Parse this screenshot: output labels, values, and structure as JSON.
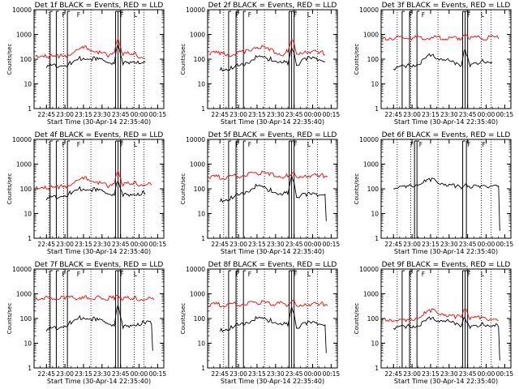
{
  "figure": {
    "background": "#ffffff",
    "axis_color": "#000000"
  },
  "chart_data": [
    {
      "type": "line",
      "title": "Det 1f BLACK = Events, RED = LLD",
      "xlabel": "Start Time (30-Apr-14 22:35:40)",
      "ylabel": "Counts/sec",
      "yscale": "log",
      "ylim": [
        1,
        10000
      ],
      "xlim": [
        "22:35",
        "00:20"
      ],
      "x_tick_labels": [
        "22:45",
        "23:00",
        "23:15",
        "23:30",
        "23:45",
        "00:00",
        "00:15"
      ],
      "y_tick_labels": [
        "1",
        "10",
        "100",
        "1000",
        "10000"
      ],
      "series": [
        {
          "color": "#ff0000",
          "x": [
            "22:36",
            "22:45",
            "22:55",
            "23:05",
            "23:15",
            "23:25",
            "23:35",
            "23:40",
            "23:43",
            "23:47",
            "23:55",
            "00:03",
            "00:05"
          ],
          "values": [
            130,
            120,
            110,
            150,
            280,
            200,
            120,
            180,
            700,
            140,
            150,
            110,
            105
          ]
        },
        {
          "color": "#000000",
          "x": [
            "22:45",
            "22:55",
            "23:05",
            "23:15",
            "23:25",
            "23:35",
            "23:40",
            "23:43",
            "23:47",
            "23:55",
            "00:03",
            "00:05"
          ],
          "values": [
            45,
            50,
            60,
            110,
            90,
            70,
            65,
            400,
            60,
            80,
            70,
            75
          ]
        }
      ],
      "bracket_lines": [
        "22:48",
        "22:53",
        "23:02",
        "23:41",
        "23:43",
        "23:45"
      ],
      "dotted_lines": [
        "22:47",
        "22:59",
        "23:21",
        "23:56",
        "00:04"
      ],
      "marker_glyphs": [
        {
          "label": "F",
          "x": "22:57"
        },
        {
          "label": "F",
          "x": "23:09"
        },
        {
          "label": "F",
          "x": "23:44"
        },
        {
          "label": "L",
          "x": "23:55"
        }
      ]
    },
    {
      "type": "line",
      "title": "Det 2f BLACK = Events, RED = LLD",
      "xlabel": "Start Time (30-Apr-14 22:35:40)",
      "ylabel": "Counts/sec",
      "yscale": "log",
      "ylim": [
        1,
        10000
      ],
      "xlim": [
        "22:35",
        "00:20"
      ],
      "x_tick_labels": [
        "22:45",
        "23:00",
        "23:15",
        "23:30",
        "23:45",
        "00:00",
        "00:15"
      ],
      "y_tick_labels": [
        "1",
        "10",
        "100",
        "1000",
        "10000"
      ],
      "series": [
        {
          "color": "#ff0000",
          "x": [
            "22:36",
            "22:45",
            "22:55",
            "23:05",
            "23:15",
            "23:25",
            "23:35",
            "23:40",
            "23:43",
            "23:47",
            "23:55",
            "00:05",
            "00:10"
          ],
          "values": [
            160,
            150,
            140,
            170,
            300,
            220,
            140,
            190,
            650,
            160,
            180,
            170,
            150
          ]
        },
        {
          "color": "#000000",
          "x": [
            "22:45",
            "22:55",
            "23:05",
            "23:15",
            "23:25",
            "23:35",
            "23:40",
            "23:43",
            "23:47",
            "23:55",
            "00:05",
            "00:10"
          ],
          "values": [
            35,
            40,
            55,
            120,
            90,
            70,
            60,
            300,
            55,
            90,
            95,
            80
          ]
        }
      ],
      "bracket_lines": [
        "22:52",
        "22:58",
        "23:04",
        "23:41",
        "23:43",
        "23:45"
      ],
      "dotted_lines": [
        "22:48",
        "22:59",
        "23:21",
        "23:56",
        "00:04"
      ],
      "marker_glyphs": [
        {
          "label": "F",
          "x": "22:57"
        },
        {
          "label": "F",
          "x": "23:07"
        },
        {
          "label": "F",
          "x": "23:44"
        },
        {
          "label": "L",
          "x": "23:55"
        }
      ]
    },
    {
      "type": "line",
      "title": "Det 3f BLACK = Events, RED = LLD",
      "xlabel": "Start Time (30-Apr-14 22:35:40)",
      "ylabel": "Counts/sec",
      "yscale": "log",
      "ylim": [
        1,
        10000
      ],
      "xlim": [
        "22:35",
        "00:20"
      ],
      "x_tick_labels": [
        "22:45",
        "23:00",
        "23:15",
        "23:30",
        "23:45",
        "00:00",
        "00:15"
      ],
      "y_tick_labels": [
        "1",
        "10",
        "100",
        "1000",
        "10000"
      ],
      "series": [
        {
          "color": "#ff0000",
          "x": [
            "22:36",
            "23:40",
            "23:43",
            "23:47",
            "00:10"
          ],
          "values": [
            650,
            650,
            900,
            650,
            650
          ]
        },
        {
          "color": "#000000",
          "x": [
            "22:45",
            "22:55",
            "23:05",
            "23:15",
            "23:25",
            "23:35",
            "23:40",
            "23:43",
            "23:47",
            "23:55",
            "00:05"
          ],
          "values": [
            40,
            45,
            60,
            130,
            90,
            60,
            55,
            250,
            50,
            70,
            75
          ]
        }
      ],
      "bracket_lines": [
        "22:52",
        "22:58",
        "23:04",
        "23:41",
        "23:43",
        "23:45"
      ],
      "dotted_lines": [
        "22:48",
        "22:59",
        "23:21",
        "23:56",
        "00:04"
      ],
      "marker_glyphs": [
        {
          "label": "F",
          "x": "22:57"
        },
        {
          "label": "F",
          "x": "23:07"
        },
        {
          "label": "F",
          "x": "23:44"
        },
        {
          "label": "L",
          "x": "23:55"
        }
      ]
    },
    {
      "type": "line",
      "title": "Det 4f BLACK = Events, RED = LLD",
      "xlabel": "Start Time (30-Apr-14 22:35:40)",
      "ylabel": "Counts/sec",
      "yscale": "log",
      "ylim": [
        1,
        10000
      ],
      "xlim": [
        "22:35",
        "00:20"
      ],
      "x_tick_labels": [
        "22:45",
        "23:00",
        "23:15",
        "23:30",
        "23:45",
        "00:00",
        "00:15"
      ],
      "y_tick_labels": [
        "1",
        "10",
        "100",
        "1000",
        "10000"
      ],
      "series": [
        {
          "color": "#ff0000",
          "x": [
            "22:36",
            "22:45",
            "22:55",
            "23:05",
            "23:15",
            "23:25",
            "23:35",
            "23:40",
            "23:43",
            "23:47",
            "23:55",
            "00:05",
            "00:10"
          ],
          "values": [
            110,
            100,
            100,
            140,
            250,
            190,
            110,
            160,
            550,
            130,
            150,
            140,
            140
          ]
        },
        {
          "color": "#000000",
          "x": [
            "22:45",
            "22:55",
            "23:05",
            "23:15",
            "23:25",
            "23:35",
            "23:40",
            "23:43",
            "23:47",
            "23:55",
            "00:05"
          ],
          "values": [
            35,
            45,
            60,
            100,
            80,
            60,
            55,
            200,
            50,
            60,
            60
          ]
        }
      ],
      "bracket_lines": [
        "22:48",
        "22:53",
        "23:02",
        "23:41",
        "23:43",
        "23:45"
      ],
      "dotted_lines": [
        "22:47",
        "22:59",
        "23:21",
        "23:56",
        "00:04"
      ],
      "marker_glyphs": [
        {
          "label": "F",
          "x": "22:57"
        },
        {
          "label": "F",
          "x": "23:09"
        },
        {
          "label": "F",
          "x": "23:44"
        },
        {
          "label": "L",
          "x": "23:55"
        }
      ]
    },
    {
      "type": "line",
      "title": "Det 5f BLACK = Events, RED = LLD",
      "xlabel": "Start Time (30-Apr-14 22:35:40)",
      "ylabel": "Counts/sec",
      "yscale": "log",
      "ylim": [
        1,
        10000
      ],
      "xlim": [
        "22:35",
        "00:20"
      ],
      "x_tick_labels": [
        "22:45",
        "23:00",
        "23:15",
        "23:30",
        "23:45",
        "00:00",
        "00:15"
      ],
      "y_tick_labels": [
        "1",
        "10",
        "100",
        "1000",
        "10000"
      ],
      "series": [
        {
          "color": "#ff0000",
          "x": [
            "22:36",
            "22:50",
            "23:00",
            "23:15",
            "23:25",
            "23:35",
            "23:40",
            "23:43",
            "23:47",
            "23:55",
            "00:05",
            "00:12"
          ],
          "values": [
            270,
            260,
            300,
            400,
            350,
            290,
            300,
            400,
            290,
            300,
            300,
            300
          ]
        },
        {
          "color": "#000000",
          "x": [
            "22:45",
            "22:55",
            "23:05",
            "23:15",
            "23:25",
            "23:35",
            "23:40",
            "23:43",
            "23:47",
            "23:55",
            "00:05",
            "00:10",
            "00:11"
          ],
          "values": [
            30,
            40,
            60,
            130,
            80,
            55,
            60,
            350,
            45,
            50,
            55,
            60,
            5
          ]
        }
      ],
      "bracket_lines": [
        "22:52",
        "22:58",
        "23:04",
        "23:41",
        "23:43",
        "23:45"
      ],
      "dotted_lines": [
        "22:48",
        "22:59",
        "23:21",
        "23:56",
        "00:04"
      ],
      "marker_glyphs": [
        {
          "label": "F",
          "x": "22:57"
        },
        {
          "label": "F",
          "x": "23:07"
        },
        {
          "label": "F",
          "x": "23:44"
        },
        {
          "label": "L",
          "x": "23:55"
        }
      ]
    },
    {
      "type": "line",
      "title": "Det 6f BLACK = Events, RED = LLD",
      "xlabel": "Start Time (30-Apr-14 22:35:40)",
      "ylabel": "Counts/sec",
      "yscale": "log",
      "ylim": [
        1,
        10000
      ],
      "xlim": [
        "22:35",
        "00:20"
      ],
      "x_tick_labels": [
        "22:45",
        "23:00",
        "23:15",
        "23:30",
        "23:45",
        "00:00",
        "00:15"
      ],
      "y_tick_labels": [
        "1",
        "10",
        "100",
        "1000",
        "10000"
      ],
      "series": [
        {
          "color": "#000000",
          "x": [
            "22:45",
            "22:55",
            "23:05",
            "23:15",
            "23:25",
            "23:35",
            "23:40",
            "23:45",
            "23:55",
            "00:05",
            "00:10",
            "00:11"
          ],
          "values": [
            100,
            110,
            140,
            200,
            160,
            110,
            100,
            120,
            110,
            130,
            130,
            2
          ]
        }
      ],
      "bracket_lines": [
        "23:02",
        "23:04",
        "23:41",
        "23:44"
      ],
      "dotted_lines": [
        "22:48",
        "22:59",
        "23:21",
        "23:56",
        "00:04"
      ],
      "marker_glyphs": [
        {
          "label": "F",
          "x": "22:58"
        },
        {
          "label": "F",
          "x": "23:05"
        },
        {
          "label": "F",
          "x": "23:44"
        },
        {
          "label": "F",
          "x": "23:56"
        }
      ]
    },
    {
      "type": "line",
      "title": "Det 7f BLACK = Events, RED = LLD",
      "xlabel": "Start Time (30-Apr-14 22:35:40)",
      "ylabel": "Counts/sec",
      "yscale": "log",
      "ylim": [
        1,
        10000
      ],
      "xlim": [
        "22:35",
        "00:20"
      ],
      "x_tick_labels": [
        "22:45",
        "23:00",
        "23:15",
        "23:30",
        "23:45",
        "00:00",
        "00:15"
      ],
      "y_tick_labels": [
        "1",
        "10",
        "100",
        "1000",
        "10000"
      ],
      "series": [
        {
          "color": "#ff0000",
          "x": [
            "22:36",
            "22:50",
            "23:00",
            "23:15",
            "23:30",
            "23:40",
            "23:43",
            "23:47",
            "23:55",
            "00:05",
            "00:12"
          ],
          "values": [
            600,
            580,
            600,
            650,
            600,
            580,
            850,
            560,
            580,
            570,
            560
          ]
        },
        {
          "color": "#000000",
          "x": [
            "22:45",
            "22:55",
            "23:05",
            "23:15",
            "23:25",
            "23:35",
            "23:40",
            "23:43",
            "23:47",
            "23:55",
            "00:05",
            "00:10",
            "00:11"
          ],
          "values": [
            30,
            40,
            60,
            110,
            80,
            60,
            50,
            350,
            40,
            55,
            60,
            60,
            5
          ]
        }
      ],
      "bracket_lines": [
        "22:48",
        "22:53",
        "23:02",
        "23:41",
        "23:43",
        "23:45"
      ],
      "dotted_lines": [
        "22:47",
        "22:59",
        "23:21",
        "23:56",
        "00:04"
      ],
      "marker_glyphs": [
        {
          "label": "F",
          "x": "22:57"
        },
        {
          "label": "F",
          "x": "23:09"
        },
        {
          "label": "F",
          "x": "23:44"
        },
        {
          "label": "L",
          "x": "23:55"
        }
      ]
    },
    {
      "type": "line",
      "title": "Det 8f BLACK = Events, RED = LLD",
      "xlabel": "Start Time (30-Apr-14 22:35:40)",
      "ylabel": "Counts/sec",
      "yscale": "log",
      "ylim": [
        1,
        10000
      ],
      "xlim": [
        "22:35",
        "00:20"
      ],
      "x_tick_labels": [
        "22:45",
        "23:00",
        "23:15",
        "23:30",
        "23:45",
        "00:00",
        "00:15"
      ],
      "y_tick_labels": [
        "1",
        "10",
        "100",
        "1000",
        "10000"
      ],
      "series": [
        {
          "color": "#ff0000",
          "x": [
            "22:36",
            "22:50",
            "23:00",
            "23:15",
            "23:30",
            "23:40",
            "23:43",
            "23:47",
            "23:55",
            "00:05",
            "00:12"
          ],
          "values": [
            330,
            320,
            340,
            400,
            360,
            330,
            500,
            320,
            330,
            340,
            330
          ]
        },
        {
          "color": "#000000",
          "x": [
            "22:45",
            "22:55",
            "23:05",
            "23:15",
            "23:25",
            "23:35",
            "23:40",
            "23:43",
            "23:47",
            "23:55",
            "00:05",
            "00:10",
            "00:11"
          ],
          "values": [
            30,
            40,
            55,
            100,
            75,
            55,
            50,
            300,
            40,
            55,
            60,
            55,
            4
          ]
        }
      ],
      "bracket_lines": [
        "22:52",
        "22:58",
        "23:04",
        "23:41",
        "23:43",
        "23:45"
      ],
      "dotted_lines": [
        "22:48",
        "22:59",
        "23:21",
        "23:56",
        "00:04"
      ],
      "marker_glyphs": [
        {
          "label": "F",
          "x": "22:57"
        },
        {
          "label": "F",
          "x": "23:07"
        },
        {
          "label": "F",
          "x": "23:44"
        },
        {
          "label": "L",
          "x": "23:55"
        }
      ]
    },
    {
      "type": "line",
      "title": "Det 9f BLACK = Events, RED = LLD",
      "xlabel": "Start Time (30-Apr-14 22:35:40)",
      "ylabel": "Counts/sec",
      "yscale": "log",
      "ylim": [
        1,
        10000
      ],
      "xlim": [
        "22:35",
        "00:20"
      ],
      "x_tick_labels": [
        "22:45",
        "23:00",
        "23:15",
        "23:30",
        "23:45",
        "00:00",
        "00:15"
      ],
      "y_tick_labels": [
        "1",
        "10",
        "100",
        "1000",
        "10000"
      ],
      "series": [
        {
          "color": "#ff0000",
          "x": [
            "22:36",
            "22:45",
            "22:55",
            "23:05",
            "23:15",
            "23:25",
            "23:35",
            "23:40",
            "23:43",
            "23:47",
            "23:55",
            "00:05",
            "00:10"
          ],
          "values": [
            90,
            80,
            75,
            100,
            180,
            150,
            100,
            110,
            250,
            90,
            95,
            90,
            85
          ]
        },
        {
          "color": "#000000",
          "x": [
            "22:45",
            "22:55",
            "23:05",
            "23:15",
            "23:25",
            "23:35",
            "23:40",
            "23:43",
            "23:47",
            "23:55",
            "00:05",
            "00:10",
            "00:11"
          ],
          "values": [
            40,
            40,
            50,
            90,
            75,
            55,
            50,
            100,
            40,
            50,
            50,
            45,
            2
          ]
        }
      ],
      "bracket_lines": [
        "22:52",
        "22:58",
        "23:04",
        "23:41",
        "23:43",
        "23:45"
      ],
      "dotted_lines": [
        "22:48",
        "22:59",
        "23:21",
        "23:56",
        "00:04"
      ],
      "marker_glyphs": [
        {
          "label": "F",
          "x": "22:57"
        },
        {
          "label": "F",
          "x": "23:07"
        },
        {
          "label": "F",
          "x": "23:44"
        },
        {
          "label": "L",
          "x": "23:55"
        }
      ]
    }
  ]
}
